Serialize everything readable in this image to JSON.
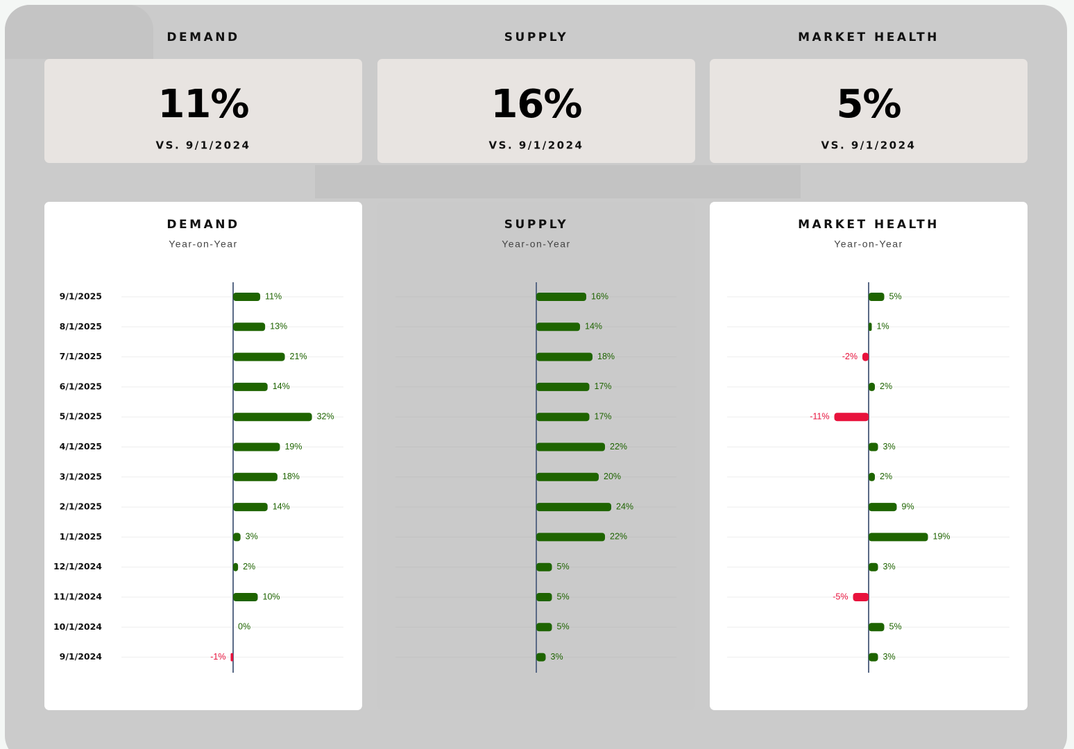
{
  "kpis": [
    {
      "title": "DEMAND",
      "value": "11%",
      "note": "VS. 9/1/2024"
    },
    {
      "title": "SUPPLY",
      "value": "16%",
      "note": "VS. 9/1/2024"
    },
    {
      "title": "MARKET HEALTH",
      "value": "5%",
      "note": "VS. 9/1/2024"
    }
  ],
  "chart_data": [
    {
      "type": "hbar",
      "title": "DEMAND",
      "subtitle": "Year-on-Year",
      "categories": [
        "9/1/2025",
        "8/1/2025",
        "7/1/2025",
        "6/1/2025",
        "5/1/2025",
        "4/1/2025",
        "3/1/2025",
        "2/1/2025",
        "1/1/2025",
        "12/1/2024",
        "11/1/2024",
        "10/1/2024",
        "9/1/2024"
      ],
      "values": [
        11,
        13,
        21,
        14,
        32,
        19,
        18,
        14,
        3,
        2,
        10,
        0,
        -1
      ],
      "value_labels": [
        "11%",
        "13%",
        "21%",
        "14%",
        "32%",
        "19%",
        "18%",
        "14%",
        "3%",
        "2%",
        "10%",
        "0%",
        "-1%"
      ],
      "color": "#1e6400",
      "negative_color": "#e8123c"
    },
    {
      "type": "hbar",
      "title": "SUPPLY",
      "subtitle": "Year-on-Year",
      "values": [
        16,
        14,
        18,
        17,
        17,
        22,
        20,
        24,
        22,
        5,
        5,
        5,
        3
      ],
      "value_labels": [
        "16%",
        "14%",
        "18%",
        "17%",
        "17%",
        "22%",
        "20%",
        "24%",
        "22%",
        "5%",
        "5%",
        "5%",
        "3%"
      ],
      "color": "#1e6400",
      "negative_color": "#e8123c"
    },
    {
      "type": "hbar",
      "title": "MARKET HEALTH",
      "subtitle": "Year-on-Year",
      "values": [
        5,
        1,
        -2,
        2,
        -11,
        3,
        2,
        9,
        19,
        3,
        -5,
        5,
        3
      ],
      "value_labels": [
        "5%",
        "1%",
        "-2%",
        "2%",
        "-11%",
        "3%",
        "2%",
        "9%",
        "19%",
        "3%",
        "-5%",
        "5%",
        "3%"
      ],
      "color": "#1e6400",
      "negative_color": "#e8123c"
    }
  ]
}
